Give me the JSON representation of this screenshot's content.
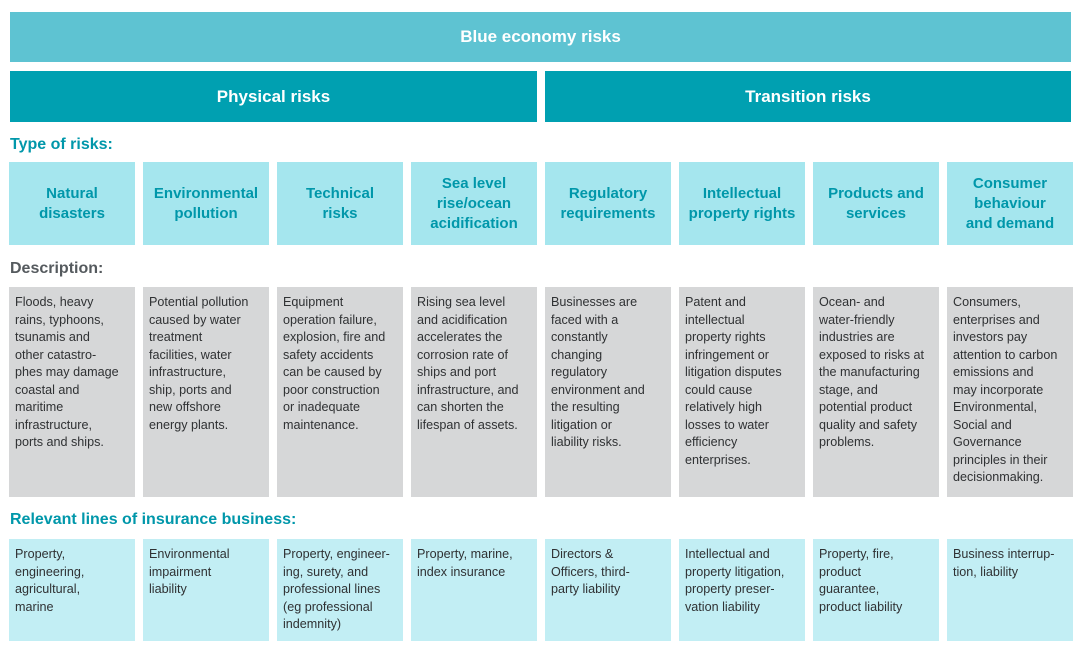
{
  "title": "Blue economy risks",
  "categories": {
    "physical": "Physical risks",
    "transition": "Transition risks"
  },
  "labels": {
    "type_of_risks": "Type of risks:",
    "description": "Description:",
    "relevant_lines": "Relevant lines of insurance business:"
  },
  "columns": [
    {
      "type": "Natural\ndisasters",
      "description": "Floods, heavy\nrains, typhoons,\ntsunamis and\nother catastro-\nphes may damage\ncoastal and\nmaritime\ninfrastructure,\nports and ships.",
      "lines": "Property,\nengineering,\nagricultural,\nmarine"
    },
    {
      "type": "Environmental\npollution",
      "description": "Potential pollution\ncaused by water\ntreatment\nfacilities, water\ninfrastructure,\nship, ports and\nnew offshore\nenergy plants.",
      "lines": "Environmental\nimpairment\nliability"
    },
    {
      "type": "Technical\nrisks",
      "description": "Equipment\noperation failure,\nexplosion, fire and\nsafety accidents\ncan be caused by\npoor construction\nor inadequate\nmaintenance.",
      "lines": "Property, engineer-\ning, surety, and\nprofessional lines\n(eg professional\nindemnity)"
    },
    {
      "type": "Sea level\nrise/ocean\nacidification",
      "description": "Rising sea level\nand acidification\naccelerates the\ncorrosion rate of\nships and port\ninfrastructure, and\ncan shorten the\nlifespan of assets.",
      "lines": "Property, marine,\nindex insurance"
    },
    {
      "type": "Regulatory\nrequirements",
      "description": "Businesses are\nfaced with a\nconstantly\nchanging\nregulatory\nenvironment and\nthe resulting\nlitigation or\nliability risks.",
      "lines": "Directors &\nOfficers, third-\nparty liability"
    },
    {
      "type": "Intellectual\nproperty rights",
      "description": "Patent and\nintellectual\nproperty rights\ninfringement or\nlitigation disputes\ncould cause\nrelatively high\nlosses to water\nefficiency\nenterprises.",
      "lines": "Intellectual and\nproperty litigation,\nproperty preser-\nvation liability"
    },
    {
      "type": "Products and\nservices",
      "description": "Ocean- and\nwater-friendly\nindustries are\nexposed to risks at\nthe manufacturing\nstage, and\npotential product\nquality and safety\nproblems.",
      "lines": "Property, fire,\nproduct\nguarantee,\nproduct liability"
    },
    {
      "type": "Consumer\nbehaviour\nand demand",
      "description": "Consumers,\nenterprises and\ninvestors pay\nattention to carbon\nemissions and\nmay incorporate\nEnvironmental,\nSocial and\nGovernance\nprinciples in their\ndecisionmaking.",
      "lines": "Business interrup-\ntion, liability"
    }
  ]
}
